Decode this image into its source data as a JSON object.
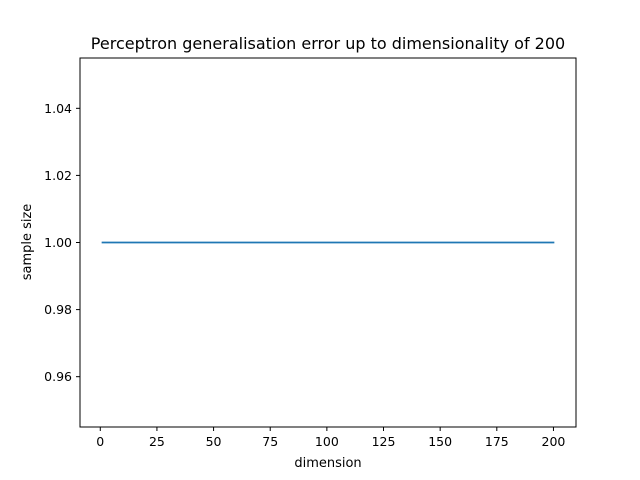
{
  "chart_data": {
    "type": "line",
    "title": "Perceptron generalisation error up to dimensionality of 200",
    "xlabel": "dimension",
    "ylabel": "sample size",
    "xlim": [
      -8.95,
      209.95
    ],
    "ylim": [
      0.945,
      1.055
    ],
    "xticks": [
      0,
      25,
      50,
      75,
      100,
      125,
      150,
      175,
      200
    ],
    "yticks": [
      0.96,
      0.98,
      1.0,
      1.02,
      1.04
    ],
    "xtick_labels": [
      "0",
      "25",
      "50",
      "75",
      "100",
      "125",
      "150",
      "175",
      "200"
    ],
    "ytick_labels": [
      "0.96",
      "0.98",
      "1.00",
      "1.02",
      "1.04"
    ],
    "grid": false,
    "series": [
      {
        "color": "#1f77b4",
        "x": [
          1,
          200
        ],
        "y": [
          1.0,
          1.0
        ]
      }
    ]
  }
}
